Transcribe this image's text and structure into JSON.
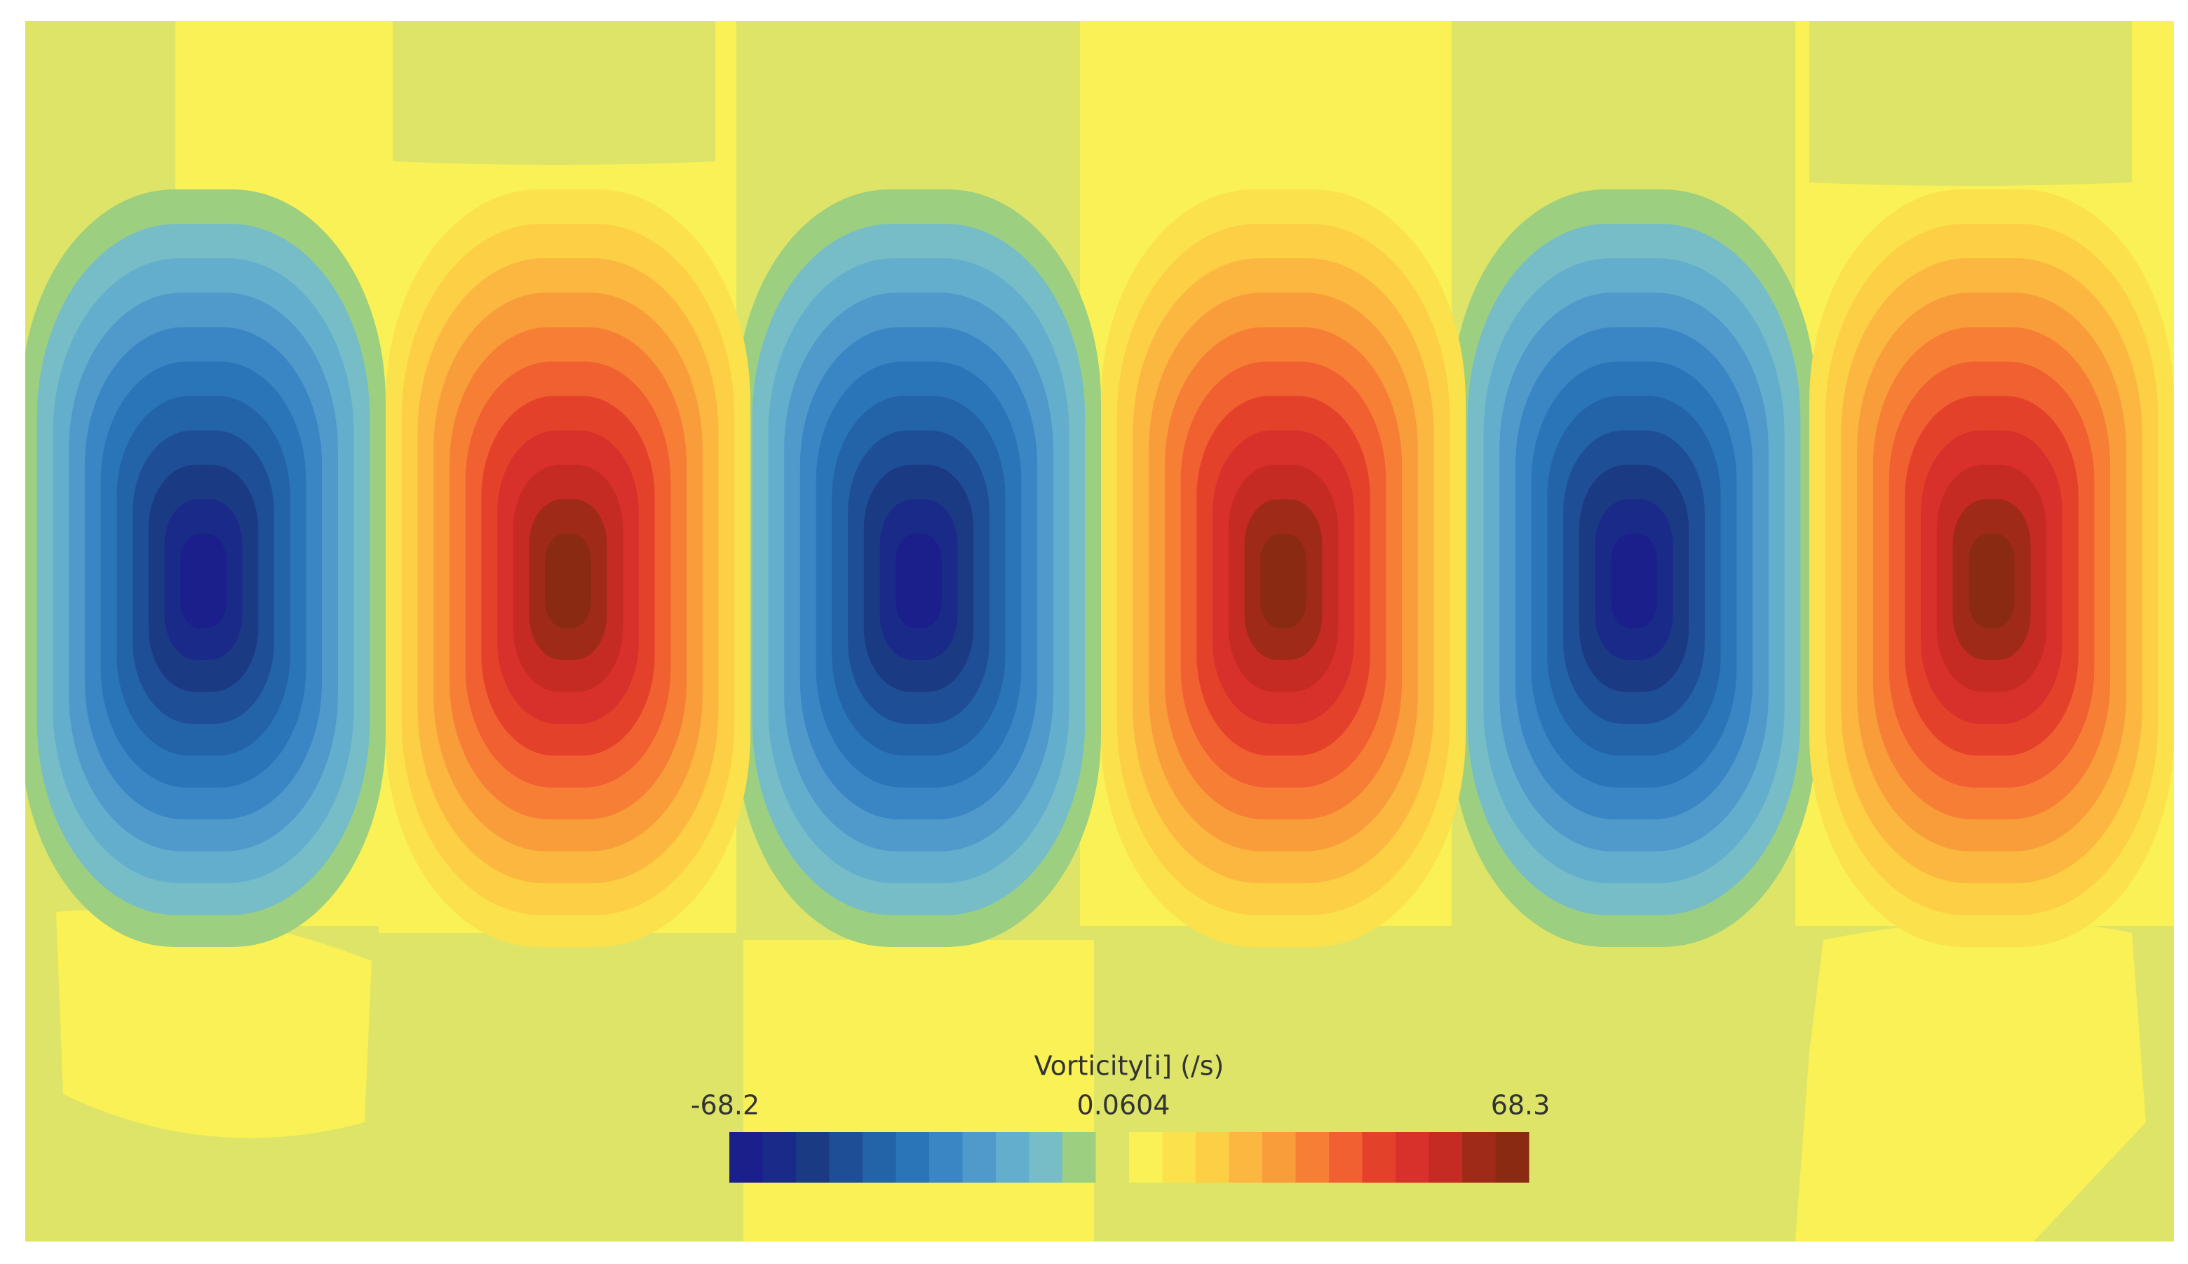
{
  "legend": {
    "title": "Vorticity[i] (/s)",
    "labels": [
      "-68.2",
      "0.0604",
      "68.3"
    ]
  }
}
